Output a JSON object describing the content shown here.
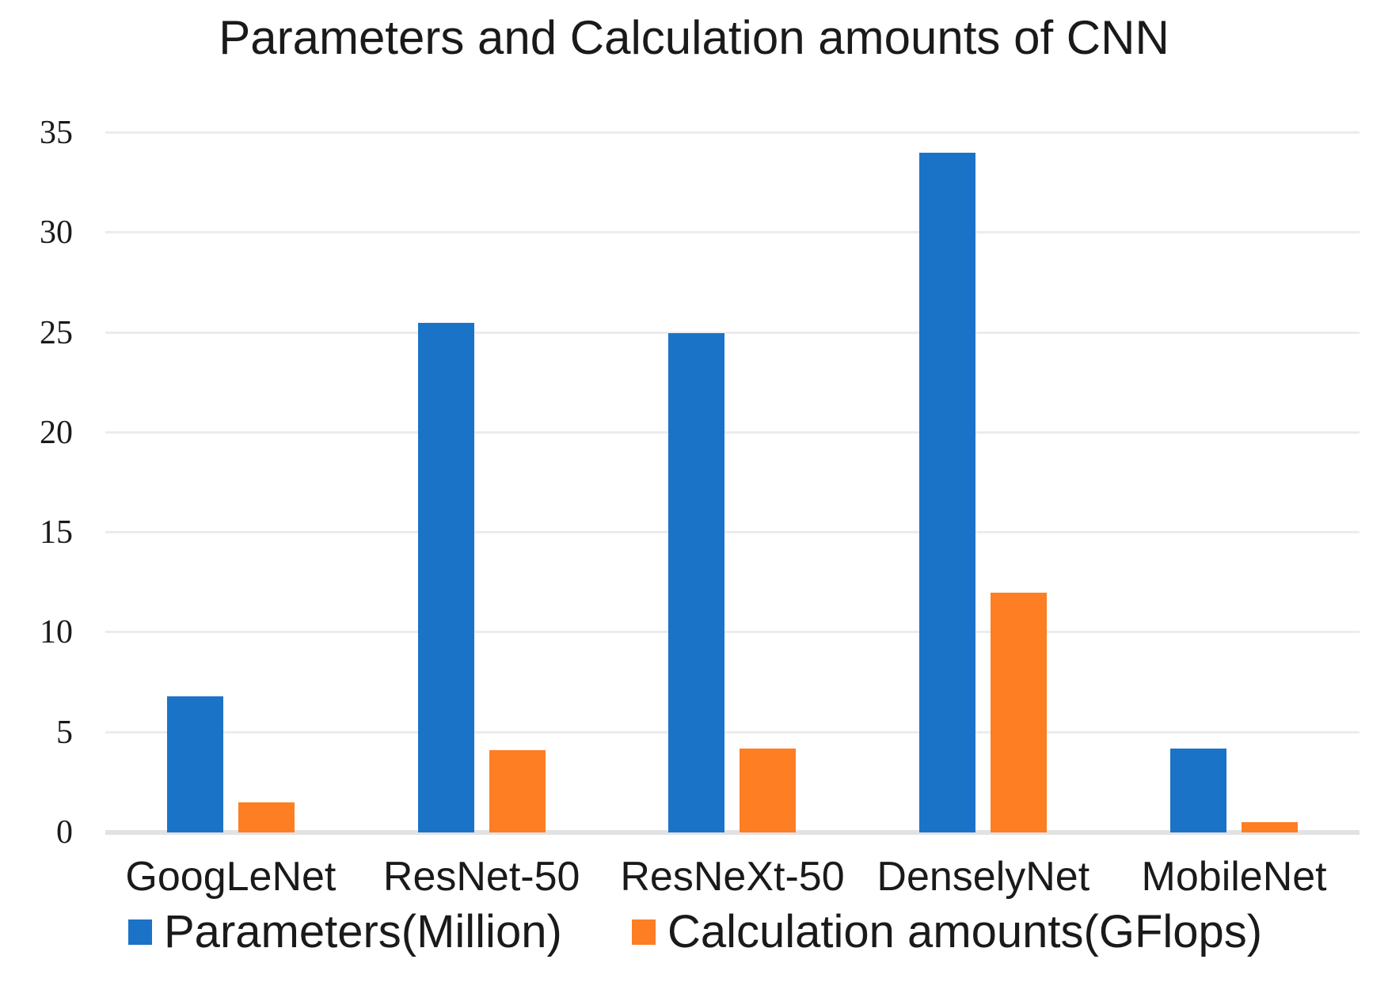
{
  "chart_data": {
    "type": "bar",
    "title": "Parameters and Calculation amounts of CNN",
    "categories": [
      "GoogLeNet",
      "ResNet-50",
      "ResNeXt-50",
      "DenselyNet",
      "MobileNet"
    ],
    "series": [
      {
        "name": "Parameters(Million)",
        "color": "#1B73C8",
        "values": [
          6.8,
          25.5,
          25,
          34,
          4.2
        ]
      },
      {
        "name": "Calculation amounts(GFlops)",
        "color": "#FD7E23",
        "values": [
          1.5,
          4.1,
          4.2,
          12,
          0.5
        ]
      }
    ],
    "xlabel": "",
    "ylabel": "",
    "ylim": [
      0,
      35
    ],
    "yticks": [
      0,
      5,
      10,
      15,
      20,
      25,
      30,
      35
    ],
    "grid": true,
    "legend_position": "bottom"
  },
  "styles": {
    "background": "#ffffff",
    "text_color": "#1a1a1a",
    "grid_color": "#ececec",
    "axis_line_color": "#e2e2e2",
    "series_blue": "#1B73C8",
    "series_orange": "#FD7E23"
  }
}
